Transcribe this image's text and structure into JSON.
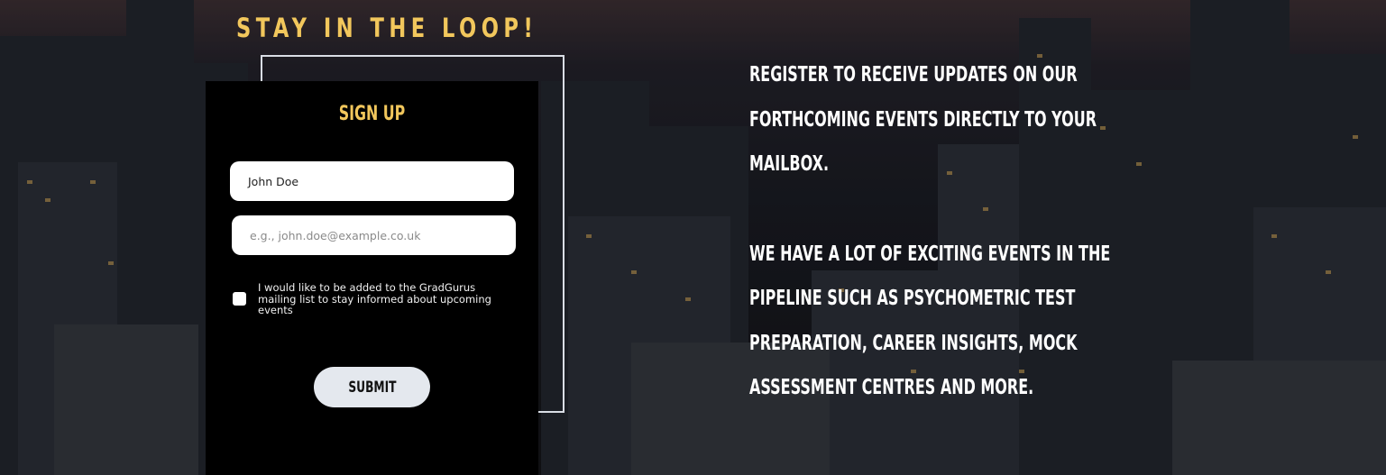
{
  "section": {
    "heading": "STAY IN THE LOOP!"
  },
  "signup": {
    "title": "SIGN UP",
    "name_value": "John Doe",
    "email_placeholder": "e.g., john.doe@example.co.uk",
    "consent_label": "I would like to be added to the GradGurus mailing list to stay informed about upcoming events",
    "consent_checked": false,
    "submit_label": "SUBMIT"
  },
  "info": {
    "paragraph_1": "REGISTER TO RECEIVE UPDATES ON OUR FORTHCOMING EVENTS DIRECTLY TO YOUR MAILBOX.",
    "paragraph_2": "WE HAVE A LOT OF EXCITING EVENTS IN THE PIPELINE SUCH AS PSYCHOMETRIC TEST PREPARATION, CAREER INSIGHTS, MOCK ASSESSMENT CENTRES AND MORE."
  },
  "colors": {
    "accent": "#f2c75c",
    "card_background": "#000000",
    "text_light": "#ffffff",
    "button_background": "#e4e8ee"
  }
}
